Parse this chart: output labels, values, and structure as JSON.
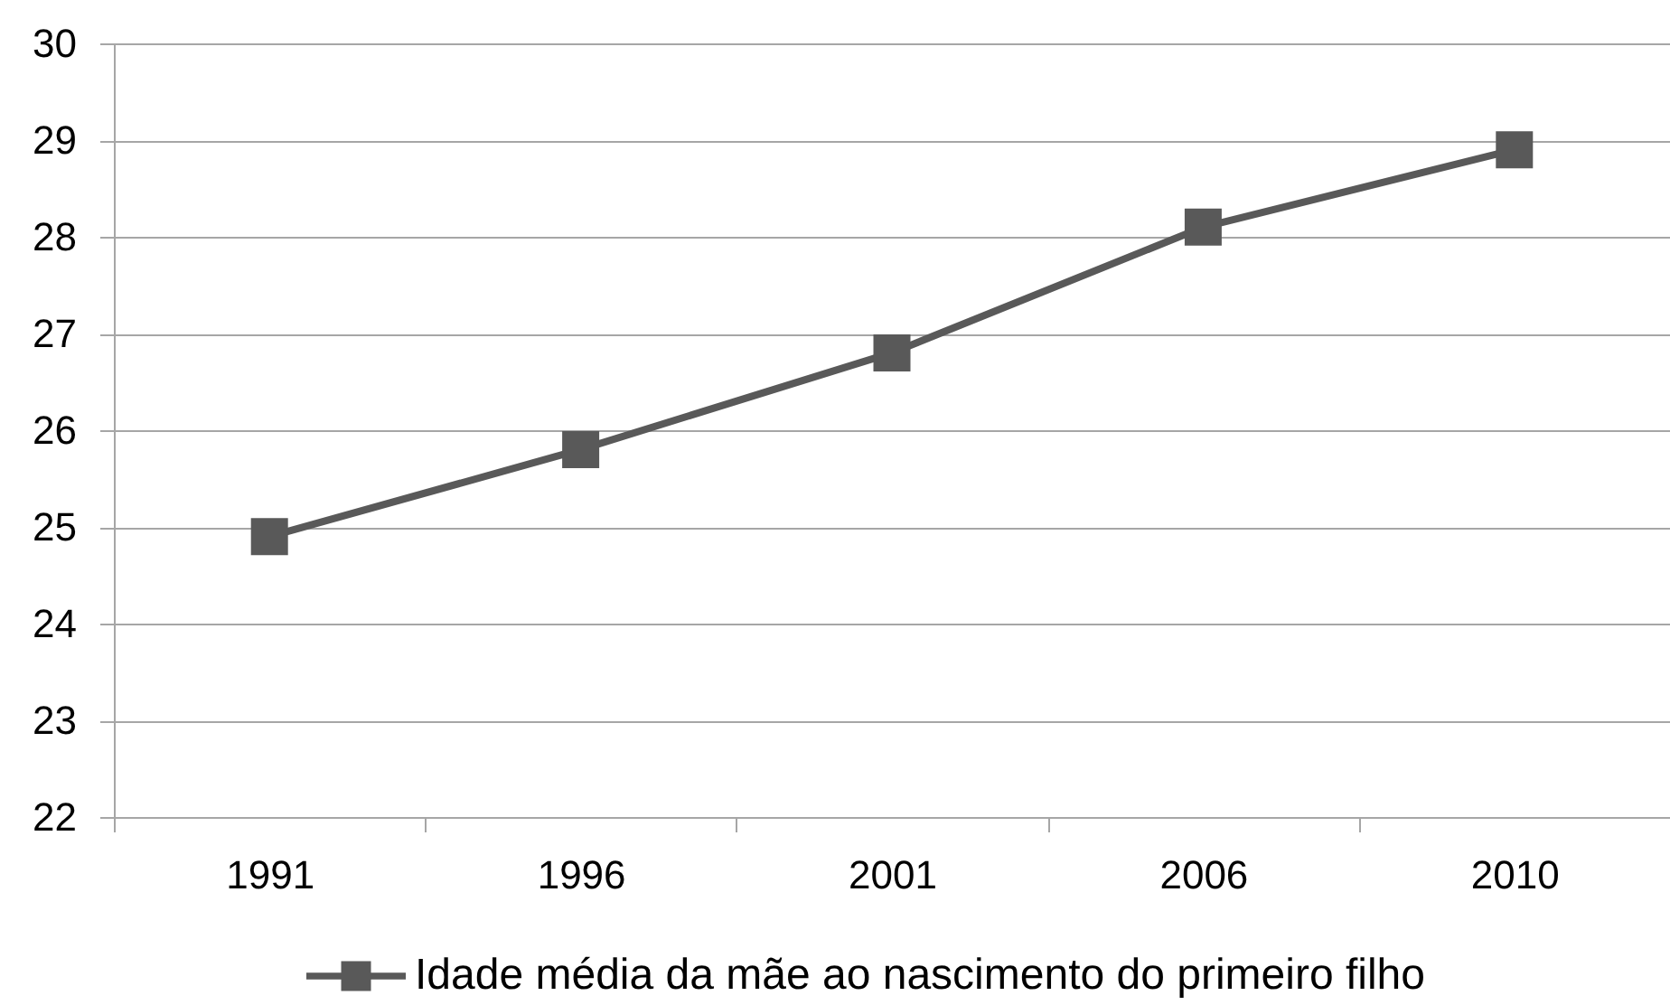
{
  "chart_data": {
    "type": "line",
    "categories": [
      "1991",
      "1996",
      "2001",
      "2006",
      "2010"
    ],
    "series": [
      {
        "name": "Idade média da mãe ao nascimento do primeiro filho",
        "color": "#595959",
        "values": [
          24.9,
          25.8,
          26.8,
          28.1,
          28.9
        ]
      }
    ],
    "ylim": [
      22,
      30
    ],
    "yticks": [
      22,
      23,
      24,
      25,
      26,
      27,
      28,
      29,
      30
    ],
    "grid": "y",
    "legend": "bottom",
    "marker": "square",
    "line_style": "solid"
  }
}
